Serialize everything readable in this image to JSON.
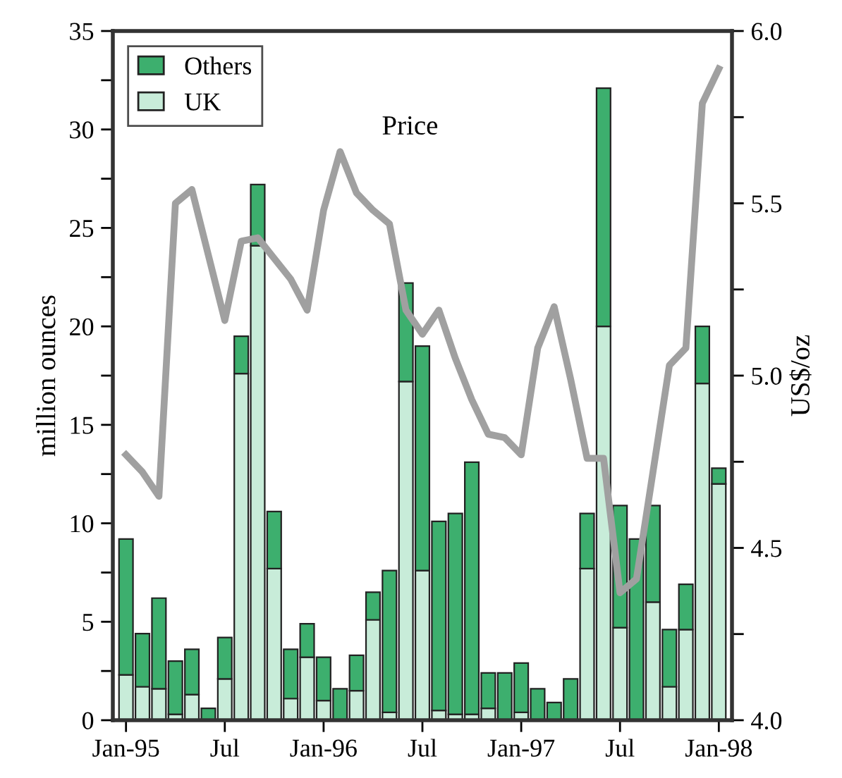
{
  "chart_data": {
    "type": "bar",
    "stacked": true,
    "ylabel": "million ounces",
    "y2label": "US$/oz",
    "categories": [
      "Jan-95",
      null,
      null,
      null,
      null,
      null,
      "Jul",
      null,
      null,
      null,
      null,
      null,
      "Jan-96",
      null,
      null,
      null,
      null,
      null,
      "Jul",
      null,
      null,
      null,
      null,
      null,
      "Jan-97",
      null,
      null,
      null,
      null,
      null,
      "Jul",
      null,
      null,
      null,
      null,
      null,
      "Jan-98"
    ],
    "series": [
      {
        "name": "UK",
        "color": "#c8ecd9",
        "values": [
          2.3,
          1.7,
          1.6,
          0.3,
          1.3,
          0,
          2.1,
          17.6,
          24.1,
          7.7,
          1.1,
          3.2,
          1.0,
          0,
          1.5,
          5.1,
          0.4,
          17.2,
          7.6,
          0.5,
          0.3,
          0.3,
          0.6,
          0,
          0.4,
          0,
          0,
          0,
          7.7,
          20.0,
          4.7,
          0,
          6.0,
          1.7,
          4.6,
          17.1,
          12.0
        ]
      },
      {
        "name": "Others",
        "color": "#3daf6e",
        "values": [
          6.9,
          2.7,
          4.6,
          2.7,
          2.3,
          0.6,
          2.1,
          1.9,
          3.1,
          2.9,
          2.5,
          1.7,
          2.2,
          1.6,
          1.8,
          1.4,
          7.2,
          5.0,
          11.4,
          9.6,
          10.2,
          12.8,
          1.8,
          2.4,
          2.5,
          1.6,
          0.9,
          2.1,
          2.8,
          12.1,
          6.2,
          9.2,
          4.9,
          2.9,
          2.3,
          2.9,
          0.8
        ]
      },
      {
        "name": "Price",
        "type": "line",
        "axis": "y2",
        "color": "#a0a0a0",
        "values": [
          4.77,
          4.72,
          4.65,
          5.5,
          5.54,
          5.35,
          5.16,
          5.39,
          5.4,
          5.34,
          5.28,
          5.19,
          5.48,
          5.65,
          5.53,
          5.48,
          5.44,
          5.19,
          5.12,
          5.19,
          5.05,
          4.93,
          4.83,
          4.82,
          4.77,
          5.08,
          5.2,
          4.99,
          4.76,
          4.76,
          4.37,
          4.41,
          4.72,
          5.03,
          5.08,
          5.79,
          5.89
        ]
      }
    ],
    "ylim": [
      0,
      35
    ],
    "yticks": [
      0,
      {
        "value": 2.5,
        "label": null
      },
      5,
      {
        "value": 7.5,
        "label": null
      },
      10,
      {
        "value": 12.5,
        "label": null
      },
      15,
      {
        "value": 17.5,
        "label": null
      },
      20,
      {
        "value": 22.5,
        "label": null
      },
      25,
      {
        "value": 27.5,
        "label": null
      },
      30,
      {
        "value": 32.5,
        "label": null
      },
      35
    ],
    "y2lim": [
      4.0,
      6.0
    ],
    "y2ticks": [
      {
        "value": 4.0,
        "label": "4.0"
      },
      {
        "value": 4.25,
        "label": null
      },
      {
        "value": 4.5,
        "label": "4.5"
      },
      {
        "value": 4.75,
        "label": null
      },
      {
        "value": 5.0,
        "label": "5.0"
      },
      {
        "value": 5.25,
        "label": null
      },
      {
        "value": 5.5,
        "label": "5.5"
      },
      {
        "value": 5.75,
        "label": null
      },
      {
        "value": 6.0,
        "label": "6.0"
      }
    ],
    "legend": "top left",
    "grid": false
  }
}
